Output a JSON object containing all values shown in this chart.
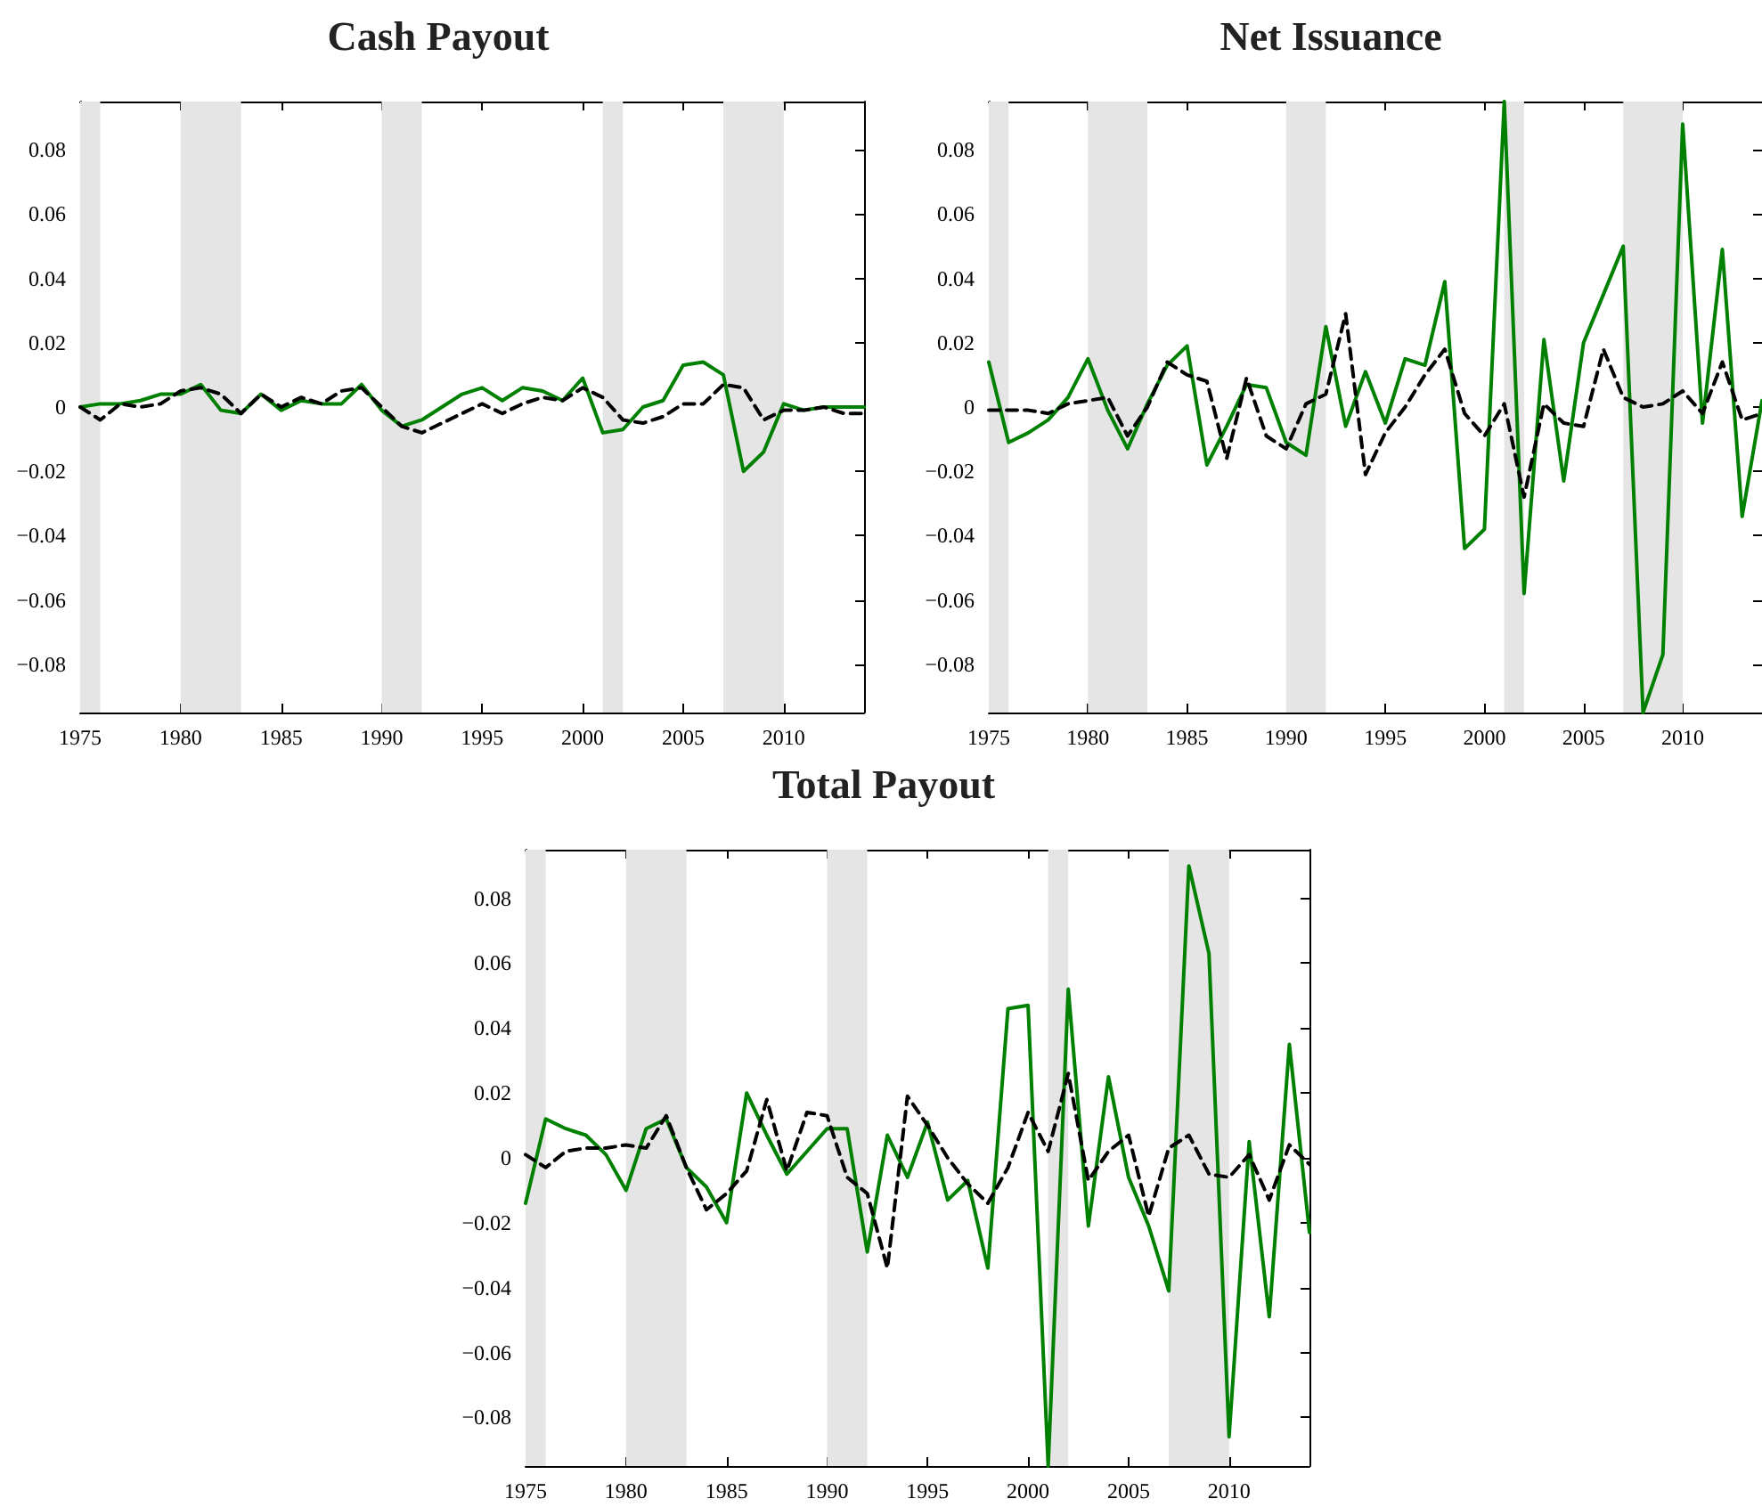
{
  "chart_data": [
    {
      "type": "line",
      "title": "Cash Payout",
      "x": [
        1975,
        1976,
        1977,
        1978,
        1979,
        1980,
        1981,
        1982,
        1983,
        1984,
        1985,
        1986,
        1987,
        1988,
        1989,
        1990,
        1991,
        1992,
        1993,
        1994,
        1995,
        1996,
        1997,
        1998,
        1999,
        2000,
        2001,
        2002,
        2003,
        2004,
        2005,
        2006,
        2007,
        2008,
        2009,
        2010,
        2011,
        2012,
        2013,
        2014
      ],
      "series": [
        {
          "color": "#008000",
          "line_style": "solid",
          "values": [
            0,
            0.001,
            0.001,
            0.002,
            0.004,
            0.004,
            0.007,
            -0.001,
            -0.002,
            0.004,
            -0.001,
            0.002,
            0.001,
            0.001,
            0.007,
            -0.001,
            -0.006,
            -0.004,
            0,
            0.004,
            0.006,
            0.002,
            0.006,
            0.005,
            0.002,
            0.009,
            -0.008,
            -0.007,
            0,
            0.002,
            0.013,
            0.014,
            0.01,
            -0.02,
            -0.014,
            0.001,
            -0.001,
            0,
            0,
            0
          ]
        },
        {
          "color": "#000000",
          "line_style": "dashed",
          "values": [
            0,
            -0.004,
            0.001,
            0,
            0.001,
            0.005,
            0.006,
            0.004,
            -0.002,
            0.004,
            0,
            0.003,
            0.001,
            0.005,
            0.006,
            0,
            -0.006,
            -0.008,
            -0.005,
            -0.002,
            0.001,
            -0.002,
            0.001,
            0.003,
            0.002,
            0.006,
            0.003,
            -0.004,
            -0.005,
            -0.003,
            0.001,
            0.001,
            0.007,
            0.006,
            -0.004,
            -0.001,
            -0.001,
            0,
            -0.002,
            -0.002
          ]
        }
      ],
      "xlim": [
        1975,
        2014
      ],
      "xticks": [
        1975,
        1980,
        1985,
        1990,
        1995,
        2000,
        2005,
        2010
      ],
      "ylim": [
        -0.095,
        0.095
      ],
      "yticks": [
        {
          "value": -0.08,
          "label": "−0.08"
        },
        {
          "value": -0.06,
          "label": "−0.06"
        },
        {
          "value": -0.04,
          "label": "−0.04"
        },
        {
          "value": -0.02,
          "label": "−0.02"
        },
        0,
        0.02,
        0.04,
        0.06,
        0.08
      ],
      "bands": [
        {
          "axis": "x",
          "from": 1975,
          "to": 1976,
          "color": "#e5e5e5"
        },
        {
          "axis": "x",
          "from": 1980,
          "to": 1983,
          "color": "#e5e5e5"
        },
        {
          "axis": "x",
          "from": 1990,
          "to": 1992,
          "color": "#e5e5e5"
        },
        {
          "axis": "x",
          "from": 2001,
          "to": 2002,
          "color": "#e5e5e5"
        },
        {
          "axis": "x",
          "from": 2007,
          "to": 2010,
          "color": "#e5e5e5"
        }
      ],
      "marker": "none",
      "grid": false
    },
    {
      "type": "line",
      "title": "Net Issuance",
      "x": [
        1975,
        1976,
        1977,
        1978,
        1979,
        1980,
        1981,
        1982,
        1983,
        1984,
        1985,
        1986,
        1987,
        1988,
        1989,
        1990,
        1991,
        1992,
        1993,
        1994,
        1995,
        1996,
        1997,
        1998,
        1999,
        2000,
        2001,
        2002,
        2003,
        2004,
        2005,
        2006,
        2007,
        2008,
        2009,
        2010,
        2011,
        2012,
        2013,
        2014
      ],
      "series": [
        {
          "color": "#008000",
          "line_style": "solid",
          "values": [
            0.014,
            -0.011,
            -0.008,
            -0.004,
            0.003,
            0.015,
            -0.001,
            -0.013,
            0.001,
            0.013,
            0.019,
            -0.018,
            -0.006,
            0.007,
            0.006,
            -0.011,
            -0.015,
            0.025,
            -0.006,
            0.011,
            -0.005,
            0.015,
            0.013,
            0.039,
            -0.044,
            -0.038,
            0.095,
            -0.058,
            0.021,
            -0.023,
            0.02,
            0.035,
            0.05,
            -0.095,
            -0.077,
            0.088,
            -0.005,
            0.049,
            -0.034,
            0.002
          ]
        },
        {
          "color": "#000000",
          "line_style": "dashed",
          "values": [
            -0.001,
            -0.001,
            -0.001,
            -0.002,
            0.001,
            0.002,
            0.003,
            -0.009,
            0,
            0.014,
            0.01,
            0.008,
            -0.016,
            0.009,
            -0.009,
            -0.013,
            0.001,
            0.004,
            0.029,
            -0.021,
            -0.008,
            0,
            0.01,
            0.018,
            -0.002,
            -0.009,
            0.001,
            -0.028,
            0.001,
            -0.005,
            -0.006,
            0.018,
            0.003,
            0,
            0.001,
            0.005,
            -0.002,
            0.014,
            -0.004,
            -0.002
          ]
        }
      ],
      "xlim": [
        1975,
        2014
      ],
      "xticks": [
        1975,
        1980,
        1985,
        1990,
        1995,
        2000,
        2005,
        2010
      ],
      "ylim": [
        -0.095,
        0.095
      ],
      "yticks": [
        {
          "value": -0.08,
          "label": "−0.08"
        },
        {
          "value": -0.06,
          "label": "−0.06"
        },
        {
          "value": -0.04,
          "label": "−0.04"
        },
        {
          "value": -0.02,
          "label": "−0.02"
        },
        0,
        0.02,
        0.04,
        0.06,
        0.08
      ],
      "bands": [
        {
          "axis": "x",
          "from": 1975,
          "to": 1976,
          "color": "#e5e5e5"
        },
        {
          "axis": "x",
          "from": 1980,
          "to": 1983,
          "color": "#e5e5e5"
        },
        {
          "axis": "x",
          "from": 1990,
          "to": 1992,
          "color": "#e5e5e5"
        },
        {
          "axis": "x",
          "from": 2001,
          "to": 2002,
          "color": "#e5e5e5"
        },
        {
          "axis": "x",
          "from": 2007,
          "to": 2010,
          "color": "#e5e5e5"
        }
      ],
      "marker": "none",
      "grid": false
    },
    {
      "type": "line",
      "title": "Total Payout",
      "x": [
        1975,
        1976,
        1977,
        1978,
        1979,
        1980,
        1981,
        1982,
        1983,
        1984,
        1985,
        1986,
        1987,
        1988,
        1989,
        1990,
        1991,
        1992,
        1993,
        1994,
        1995,
        1996,
        1997,
        1998,
        1999,
        2000,
        2001,
        2002,
        2003,
        2004,
        2005,
        2006,
        2007,
        2008,
        2009,
        2010,
        2011,
        2012,
        2013,
        2014
      ],
      "series": [
        {
          "color": "#008000",
          "line_style": "solid",
          "values": [
            -0.014,
            0.012,
            0.009,
            0.007,
            0.001,
            -0.01,
            0.009,
            0.012,
            -0.003,
            -0.009,
            -0.02,
            0.02,
            0.007,
            -0.005,
            0.002,
            0.009,
            0.009,
            -0.029,
            0.007,
            -0.006,
            0.011,
            -0.013,
            -0.007,
            -0.034,
            0.046,
            0.047,
            -0.095,
            0.052,
            -0.021,
            0.025,
            -0.006,
            -0.021,
            -0.041,
            0.09,
            0.063,
            -0.086,
            0.005,
            -0.049,
            0.035,
            -0.023
          ]
        },
        {
          "color": "#000000",
          "line_style": "dashed",
          "values": [
            0.001,
            -0.003,
            0.002,
            0.003,
            0.003,
            0.004,
            0.003,
            0.013,
            -0.003,
            -0.016,
            -0.011,
            -0.004,
            0.018,
            -0.004,
            0.014,
            0.013,
            -0.006,
            -0.011,
            -0.034,
            0.019,
            0.01,
            0,
            -0.008,
            -0.014,
            -0.003,
            0.014,
            0.002,
            0.026,
            -0.007,
            0.002,
            0.007,
            -0.018,
            0.003,
            0.007,
            -0.005,
            -0.006,
            0.001,
            -0.013,
            0.004,
            -0.002
          ]
        }
      ],
      "xlim": [
        1975,
        2014
      ],
      "xticks": [
        1975,
        1980,
        1985,
        1990,
        1995,
        2000,
        2005,
        2010
      ],
      "ylim": [
        -0.095,
        0.095
      ],
      "yticks": [
        {
          "value": -0.08,
          "label": "−0.08"
        },
        {
          "value": -0.06,
          "label": "−0.06"
        },
        {
          "value": -0.04,
          "label": "−0.04"
        },
        {
          "value": -0.02,
          "label": "−0.02"
        },
        0,
        0.02,
        0.04,
        0.06,
        0.08
      ],
      "bands": [
        {
          "axis": "x",
          "from": 1975,
          "to": 1976,
          "color": "#e5e5e5"
        },
        {
          "axis": "x",
          "from": 1980,
          "to": 1983,
          "color": "#e5e5e5"
        },
        {
          "axis": "x",
          "from": 1990,
          "to": 1992,
          "color": "#e5e5e5"
        },
        {
          "axis": "x",
          "from": 2001,
          "to": 2002,
          "color": "#e5e5e5"
        },
        {
          "axis": "x",
          "from": 2007,
          "to": 2010,
          "color": "#e5e5e5"
        }
      ],
      "marker": "none",
      "grid": false
    }
  ]
}
